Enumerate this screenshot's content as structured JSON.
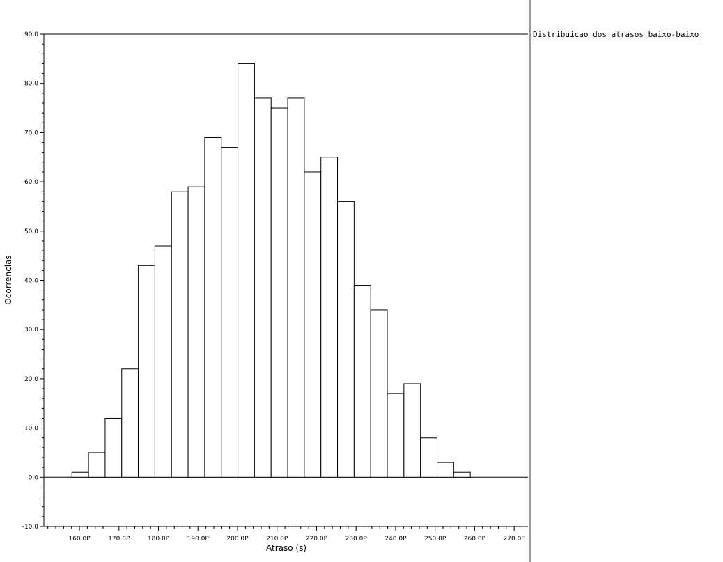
{
  "chart_data": {
    "type": "bar",
    "title": "Distribuicao dos atrasos baixo-baixo",
    "xlabel": "Atraso (s)",
    "ylabel": "Ocorrencias",
    "ylim": [
      -10,
      90
    ],
    "xlim": [
      151,
      273.5
    ],
    "y_ticks": [
      -10,
      0,
      10,
      20,
      30,
      40,
      50,
      60,
      70,
      80,
      90
    ],
    "y_tick_labels": [
      "-10.0",
      "0.0",
      "10.0",
      "20.0",
      "30.0",
      "40.0",
      "50.0",
      "60.0",
      "70.0",
      "80.0",
      "90.0"
    ],
    "x_ticks": [
      160,
      170,
      180,
      190,
      200,
      210,
      220,
      230,
      240,
      250,
      260,
      270
    ],
    "x_tick_labels": [
      "160.0P",
      "170.0P",
      "180.0P",
      "190.0P",
      "200.0P",
      "210.0P",
      "220.0P",
      "230.0P",
      "240.0P",
      "250.0P",
      "260.0P",
      "270.0P"
    ],
    "bin_width": 4.2,
    "bin_edges_start": 158.1,
    "values": [
      1,
      5,
      12,
      22,
      43,
      47,
      58,
      59,
      69,
      67,
      84,
      77,
      75,
      77,
      62,
      65,
      56,
      39,
      34,
      17,
      19,
      8,
      3,
      1
    ],
    "grid": false,
    "legend": "top-right"
  }
}
